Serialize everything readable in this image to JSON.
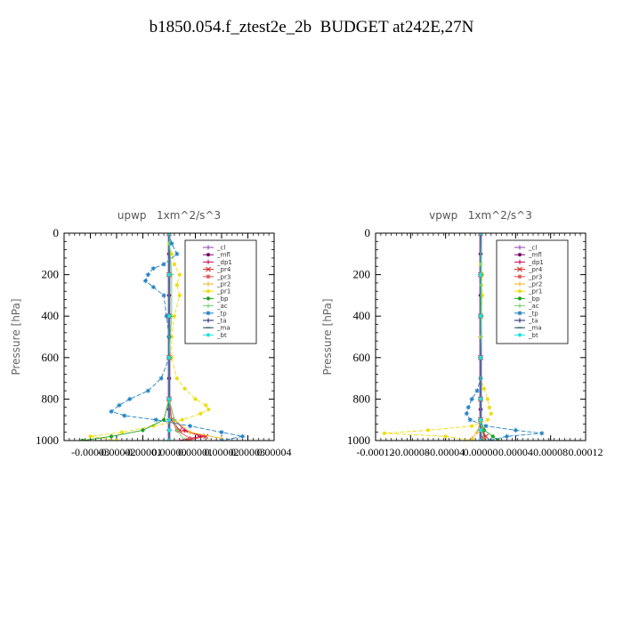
{
  "title": "b1850.054.f_ztest2e_2b  BUDGET at242E,27N",
  "chart_data": [
    {
      "type": "line",
      "title": "upwp   1xm^2/s^3",
      "ylabel": "Pressure [hPa]",
      "ylim": [
        1000,
        0
      ],
      "yticks": [
        "0",
        "200",
        "400",
        "600",
        "800",
        "1000"
      ],
      "xlim": [
        -4e-05,
        4e-05
      ],
      "xtick_labels": [
        "-0.00003",
        "-0.00002",
        "-0.00001",
        "0.00000",
        "0.00001",
        "0.00002",
        "0.00003",
        "0.00004"
      ],
      "legend": "top-right",
      "series": [
        {
          "name": "_cl",
          "color": "#8a3fb0",
          "marker": "+",
          "pressure": [
            0,
            100,
            200,
            300,
            400,
            500,
            600,
            700,
            800,
            850,
            900,
            950,
            1000
          ],
          "values": [
            0.0,
            0.0,
            0.0,
            0.0,
            0.0,
            0.0,
            0.0,
            0.0,
            0.0,
            0.0,
            0.0,
            0.0,
            0.0
          ]
        },
        {
          "name": "_mfl",
          "color": "#7a0a6a",
          "marker": "dot",
          "pressure": [
            0,
            100,
            200,
            300,
            400,
            500,
            600,
            700,
            800,
            850,
            900,
            950,
            1000
          ],
          "values": [
            0.0,
            0.0,
            0.0,
            0.0,
            0.0,
            0.0,
            0.0,
            0.0,
            0.0,
            0.0,
            0.0,
            0.0,
            0.0
          ]
        },
        {
          "name": "_dp1",
          "color": "#c40a5a",
          "marker": "+",
          "pressure": [
            0,
            200,
            400,
            600,
            800,
            900,
            950,
            980,
            1000
          ],
          "values": [
            0.0,
            0.0,
            0.0,
            0.0,
            0.0,
            2e-06,
            6e-06,
            1.2e-05,
            4e-06
          ]
        },
        {
          "name": "_pr4",
          "color": "#d42020",
          "marker": "x",
          "pressure": [
            0,
            200,
            400,
            600,
            800,
            900,
            950,
            980,
            1000
          ],
          "values": [
            0.0,
            0.0,
            0.0,
            0.0,
            0.0,
            1e-06,
            4e-06,
            1.4e-05,
            6e-06
          ]
        },
        {
          "name": "_pr3",
          "color": "#e05050",
          "marker": "star",
          "pressure": [
            0,
            200,
            400,
            600,
            800,
            900,
            950,
            990
          ],
          "values": [
            0.0,
            0.0,
            0.0,
            0.0,
            0.0,
            1e-06,
            3e-06,
            8e-06
          ]
        },
        {
          "name": "_pr2",
          "color": "#f0b020",
          "marker": "+",
          "pressure": [
            0,
            200,
            400,
            600,
            800,
            900,
            960,
            990
          ],
          "values": [
            0.0,
            0.0,
            0.0,
            0.0,
            0.0,
            2e-06,
            8e-06,
            2e-05
          ]
        },
        {
          "name": "_pr1",
          "color": "#eedd10",
          "marker": "dot",
          "pressure": [
            50,
            100,
            150,
            200,
            250,
            300,
            400,
            500,
            600,
            700,
            750,
            800,
            830,
            850,
            870,
            900,
            930,
            960,
            980,
            1000
          ],
          "values": [
            0.0,
            1e-06,
            2e-06,
            4e-06,
            3e-06,
            4e-06,
            2e-06,
            1e-06,
            1e-06,
            3e-06,
            6e-06,
            1e-05,
            1.4e-05,
            1.5e-05,
            1.2e-05,
            5e-06,
            -6e-06,
            -1.8e-05,
            -3e-05,
            -2e-05
          ]
        },
        {
          "name": "_bp",
          "color": "#20a020",
          "marker": "dot",
          "pressure": [
            0,
            200,
            400,
            600,
            800,
            900,
            950,
            980,
            1000
          ],
          "values": [
            0.0,
            0.0,
            0.0,
            0.0,
            0.0,
            -2e-06,
            -1e-05,
            -2.2e-05,
            -3.3e-05
          ]
        },
        {
          "name": "_ac",
          "color": "#70d070",
          "marker": "+",
          "pressure": [
            0,
            200,
            400,
            600,
            800,
            900,
            950,
            1000
          ],
          "values": [
            0.0,
            1e-06,
            1e-06,
            0.0,
            0.0,
            2e-06,
            3e-06,
            6e-06
          ]
        },
        {
          "name": "_tp",
          "color": "#2080c0",
          "marker": "star",
          "pressure": [
            0,
            50,
            100,
            150,
            170,
            200,
            230,
            260,
            300,
            400,
            500,
            600,
            700,
            760,
            800,
            830,
            860,
            880,
            900,
            930,
            960,
            980,
            1000
          ],
          "values": [
            0.0,
            1e-06,
            3e-06,
            -2e-06,
            -6e-06,
            -8e-06,
            -9e-06,
            -6e-06,
            -2e-06,
            -1e-06,
            0.0,
            0.0,
            -3e-06,
            -8e-06,
            -1.5e-05,
            -1.9e-05,
            -2.2e-05,
            -1.7e-05,
            -5e-06,
            8e-06,
            2e-05,
            2.8e-05,
            2e-05
          ]
        },
        {
          "name": "_ta",
          "color": "#1a2060",
          "marker": "+",
          "pressure": [
            0,
            200,
            400,
            600,
            800,
            900,
            950,
            1000
          ],
          "values": [
            0.0,
            0.0,
            0.0,
            0.0,
            0.0,
            0.0,
            0.0,
            0.0
          ]
        },
        {
          "name": "_ma",
          "color": "#205050",
          "marker": "dash",
          "pressure": [
            0,
            200,
            400,
            600,
            800,
            900,
            950,
            1000
          ],
          "values": [
            0.0,
            0.0,
            0.0,
            0.0,
            0.0,
            0.0,
            0.0,
            0.0
          ]
        },
        {
          "name": "_bt",
          "color": "#20e0e0",
          "marker": "dot",
          "pressure": [
            0,
            200,
            400,
            600,
            800,
            900,
            950,
            1000
          ],
          "values": [
            0.0,
            0.0,
            0.0,
            0.0,
            0.0,
            0.0,
            0.0,
            0.0
          ]
        }
      ]
    },
    {
      "type": "line",
      "title": "vpwp   1xm^2/s^3",
      "ylabel": "Pressure [hPa]",
      "ylim": [
        1000,
        0
      ],
      "yticks": [
        "0",
        "200",
        "400",
        "600",
        "800",
        "1000"
      ],
      "xlim": [
        -0.00012,
        0.00012
      ],
      "xtick_labels": [
        "-0.00012",
        "-0.00008",
        "-0.00004",
        "0.00000",
        "0.00004",
        "0.00008",
        "0.00012"
      ],
      "legend": "top-right",
      "series": [
        {
          "name": "_cl",
          "color": "#8a3fb0",
          "marker": "+",
          "pressure": [
            0,
            100,
            200,
            300,
            400,
            500,
            600,
            700,
            800,
            850,
            900,
            950,
            1000
          ],
          "values": [
            0.0,
            0.0,
            0.0,
            0.0,
            0.0,
            0.0,
            0.0,
            0.0,
            0.0,
            0.0,
            0.0,
            0.0,
            0.0
          ]
        },
        {
          "name": "_mfl",
          "color": "#7a0a6a",
          "marker": "dot",
          "pressure": [
            0,
            100,
            200,
            300,
            400,
            500,
            600,
            700,
            800,
            850,
            900,
            950,
            1000
          ],
          "values": [
            0.0,
            0.0,
            0.0,
            0.0,
            0.0,
            0.0,
            0.0,
            0.0,
            0.0,
            0.0,
            0.0,
            0.0,
            0.0
          ]
        },
        {
          "name": "_dp1",
          "color": "#c40a5a",
          "marker": "+",
          "pressure": [
            0,
            200,
            400,
            600,
            800,
            900,
            950,
            980,
            1000
          ],
          "values": [
            0.0,
            0.0,
            0.0,
            0.0,
            0.0,
            0.0,
            2e-06,
            4e-06,
            0.0
          ]
        },
        {
          "name": "_pr4",
          "color": "#d42020",
          "marker": "x",
          "pressure": [
            0,
            200,
            400,
            600,
            800,
            900,
            950,
            980,
            1000
          ],
          "values": [
            0.0,
            0.0,
            0.0,
            0.0,
            0.0,
            0.0,
            2e-06,
            6e-06,
            2e-06
          ]
        },
        {
          "name": "_pr3",
          "color": "#e05050",
          "marker": "star",
          "pressure": [
            0,
            200,
            400,
            600,
            800,
            900,
            950,
            990
          ],
          "values": [
            0.0,
            0.0,
            0.0,
            0.0,
            0.0,
            0.0,
            2e-06,
            4e-06
          ]
        },
        {
          "name": "_pr2",
          "color": "#f0b020",
          "marker": "+",
          "pressure": [
            0,
            200,
            400,
            600,
            800,
            900,
            960,
            990
          ],
          "values": [
            0.0,
            0.0,
            0.0,
            0.0,
            0.0,
            0.0,
            -4e-06,
            -1e-05
          ]
        },
        {
          "name": "_pr1",
          "color": "#eedd10",
          "marker": "dot",
          "pressure": [
            150,
            200,
            250,
            300,
            400,
            500,
            600,
            700,
            750,
            800,
            840,
            870,
            900,
            930,
            950,
            965,
            980,
            1000
          ],
          "values": [
            0.0,
            2e-06,
            1e-06,
            2e-06,
            1e-06,
            0.0,
            0.0,
            0.0,
            4e-06,
            8e-06,
            1e-05,
            1.2e-05,
            8e-06,
            -1e-05,
            -6e-05,
            -0.00011,
            -4e-05,
            -1e-05
          ]
        },
        {
          "name": "_bp",
          "color": "#20a020",
          "marker": "dot",
          "pressure": [
            0,
            200,
            400,
            600,
            800,
            900,
            950,
            980,
            1000
          ],
          "values": [
            0.0,
            0.0,
            0.0,
            0.0,
            0.0,
            0.0,
            4e-06,
            1.4e-05,
            2e-05
          ]
        },
        {
          "name": "_ac",
          "color": "#70d070",
          "marker": "+",
          "pressure": [
            0,
            200,
            400,
            600,
            800,
            900,
            950,
            1000
          ],
          "values": [
            0.0,
            1e-06,
            1e-06,
            0.0,
            0.0,
            0.0,
            2e-06,
            4e-06
          ]
        },
        {
          "name": "_tp",
          "color": "#2080c0",
          "marker": "star",
          "pressure": [
            0,
            200,
            400,
            600,
            700,
            760,
            800,
            840,
            870,
            900,
            930,
            950,
            965,
            980,
            1000
          ],
          "values": [
            0.0,
            0.0,
            0.0,
            0.0,
            0.0,
            -4e-06,
            -1e-05,
            -1.4e-05,
            -1.6e-05,
            -1.2e-05,
            6e-06,
            4e-05,
            7e-05,
            3e-05,
            1e-05
          ]
        },
        {
          "name": "_ta",
          "color": "#1a2060",
          "marker": "+",
          "pressure": [
            0,
            200,
            400,
            600,
            800,
            900,
            950,
            1000
          ],
          "values": [
            0.0,
            0.0,
            0.0,
            0.0,
            0.0,
            0.0,
            0.0,
            0.0
          ]
        },
        {
          "name": "_ma",
          "color": "#205050",
          "marker": "dash",
          "pressure": [
            0,
            200,
            400,
            600,
            800,
            900,
            950,
            1000
          ],
          "values": [
            0.0,
            0.0,
            0.0,
            0.0,
            0.0,
            0.0,
            0.0,
            0.0
          ]
        },
        {
          "name": "_bt",
          "color": "#20e0e0",
          "marker": "dot",
          "pressure": [
            0,
            200,
            400,
            600,
            800,
            900,
            950,
            1000
          ],
          "values": [
            0.0,
            0.0,
            0.0,
            0.0,
            0.0,
            0.0,
            0.0,
            0.0
          ]
        }
      ]
    }
  ]
}
